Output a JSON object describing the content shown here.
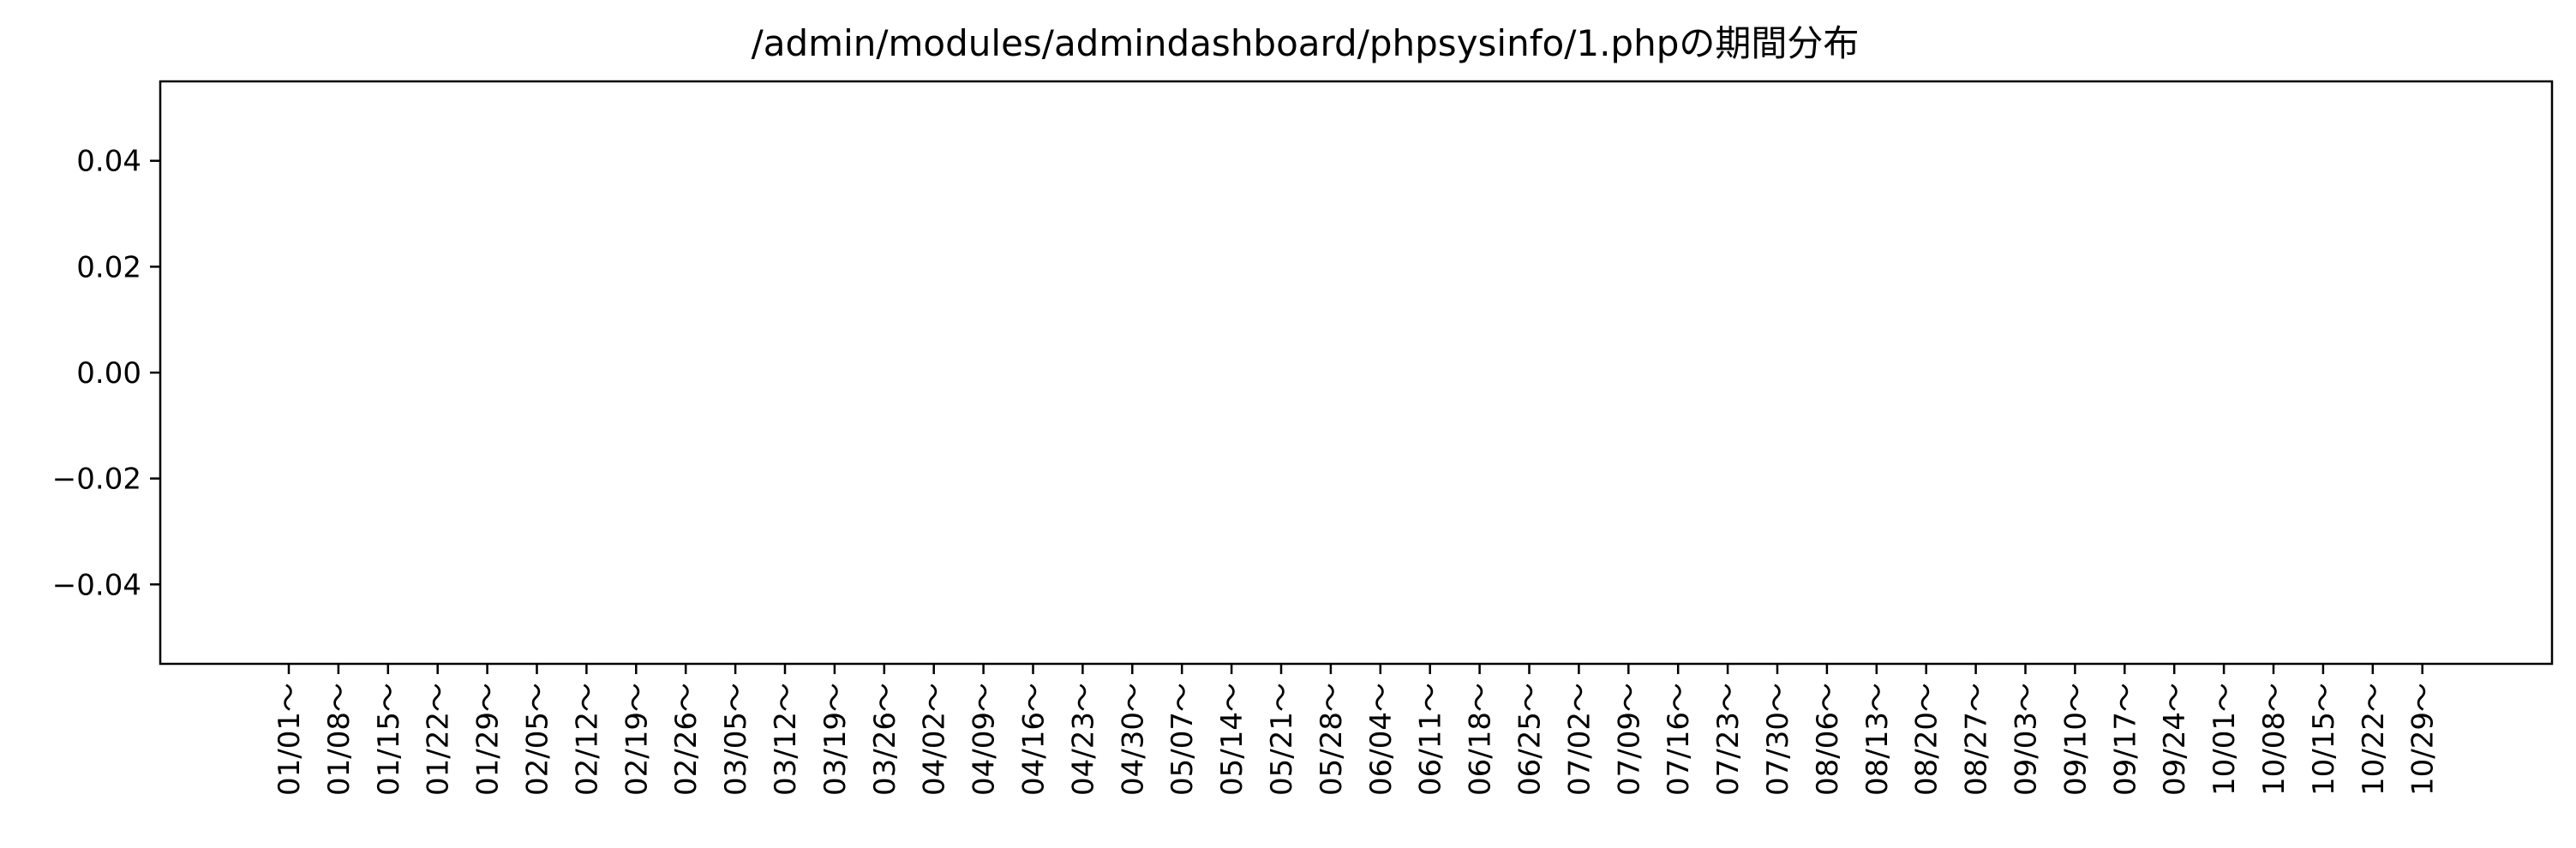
{
  "chart_data": {
    "type": "bar",
    "title": "/admin/modules/admindashboard/phpsysinfo/1.phpの期間分布",
    "xlabel": "",
    "ylabel": "",
    "categories": [
      "01/01～",
      "01/08～",
      "01/15～",
      "01/22～",
      "01/29～",
      "02/05～",
      "02/12～",
      "02/19～",
      "02/26～",
      "03/05～",
      "03/12～",
      "03/19～",
      "03/26～",
      "04/02～",
      "04/09～",
      "04/16～",
      "04/23～",
      "04/30～",
      "05/07～",
      "05/14～",
      "05/21～",
      "05/28～",
      "06/04～",
      "06/11～",
      "06/18～",
      "06/25～",
      "07/02～",
      "07/09～",
      "07/16～",
      "07/23～",
      "07/30～",
      "08/06～",
      "08/13～",
      "08/20～",
      "08/27～",
      "09/03～",
      "09/10～",
      "09/17～",
      "09/24～",
      "10/01～",
      "10/08～",
      "10/15～",
      "10/22～",
      "10/29～"
    ],
    "values": [
      0,
      0,
      0,
      0,
      0,
      0,
      0,
      0,
      0,
      0,
      0,
      0,
      0,
      0,
      0,
      0,
      0,
      0,
      0,
      0,
      0,
      0,
      0,
      0,
      0,
      0,
      0,
      0,
      0,
      0,
      0,
      0,
      0,
      0,
      0,
      0,
      0,
      0,
      0,
      0,
      0,
      0,
      0,
      0
    ],
    "ylim": [
      -0.055,
      0.055
    ],
    "yticks": [
      "0.04",
      "0.02",
      "0.00",
      "−0.02",
      "−0.04"
    ],
    "ytick_values": [
      0.04,
      0.02,
      0.0,
      -0.02,
      -0.04
    ],
    "grid": false
  }
}
